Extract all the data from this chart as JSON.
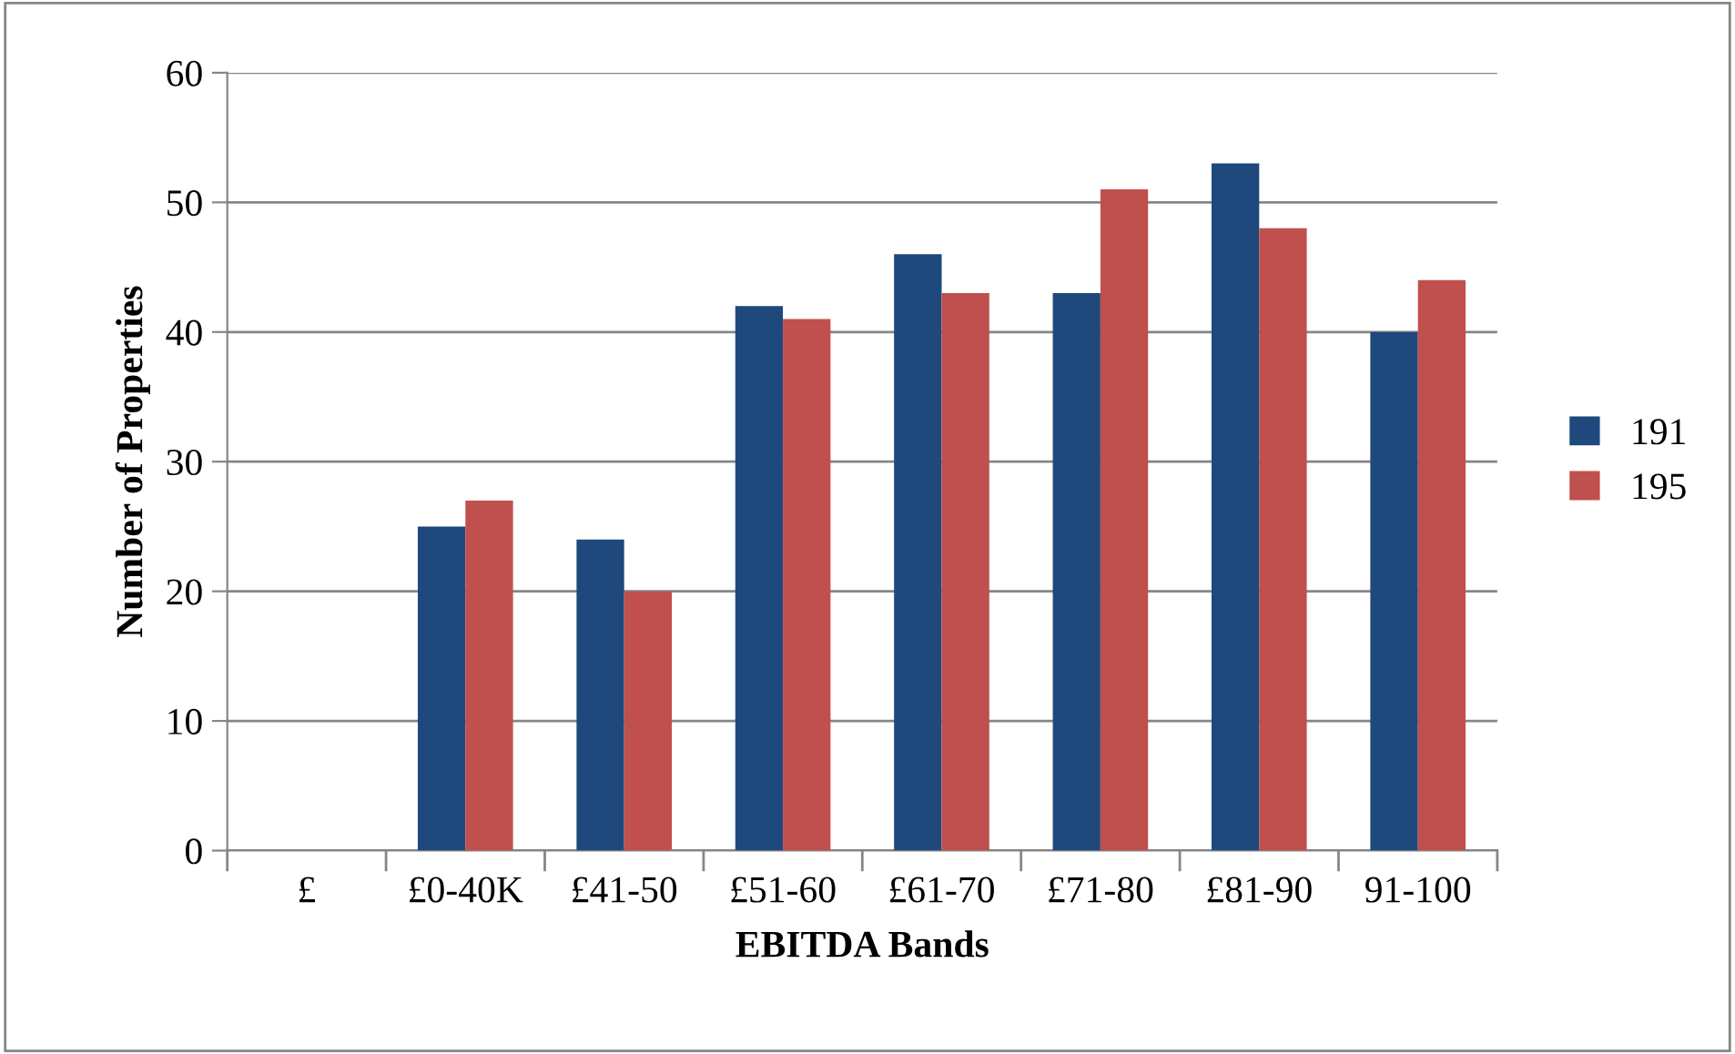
{
  "chart_data": {
    "type": "bar",
    "xlabel": "EBITDA Bands",
    "ylabel": "Number of Properties",
    "categories": [
      "£",
      "£0-40K",
      "£41-50",
      "£51-60",
      "£61-70",
      "£71-80",
      "£81-90",
      "91-100"
    ],
    "series": [
      {
        "name": "191",
        "color": "#1f497d",
        "values": [
          null,
          25,
          24,
          42,
          46,
          43,
          53,
          40
        ]
      },
      {
        "name": "195",
        "color": "#c0504d",
        "values": [
          null,
          27,
          20,
          41,
          43,
          51,
          48,
          44
        ]
      }
    ],
    "ylim": [
      0,
      60
    ],
    "yticks": [
      0,
      10,
      20,
      30,
      40,
      50,
      60
    ],
    "grid": "y",
    "legend": "right"
  }
}
